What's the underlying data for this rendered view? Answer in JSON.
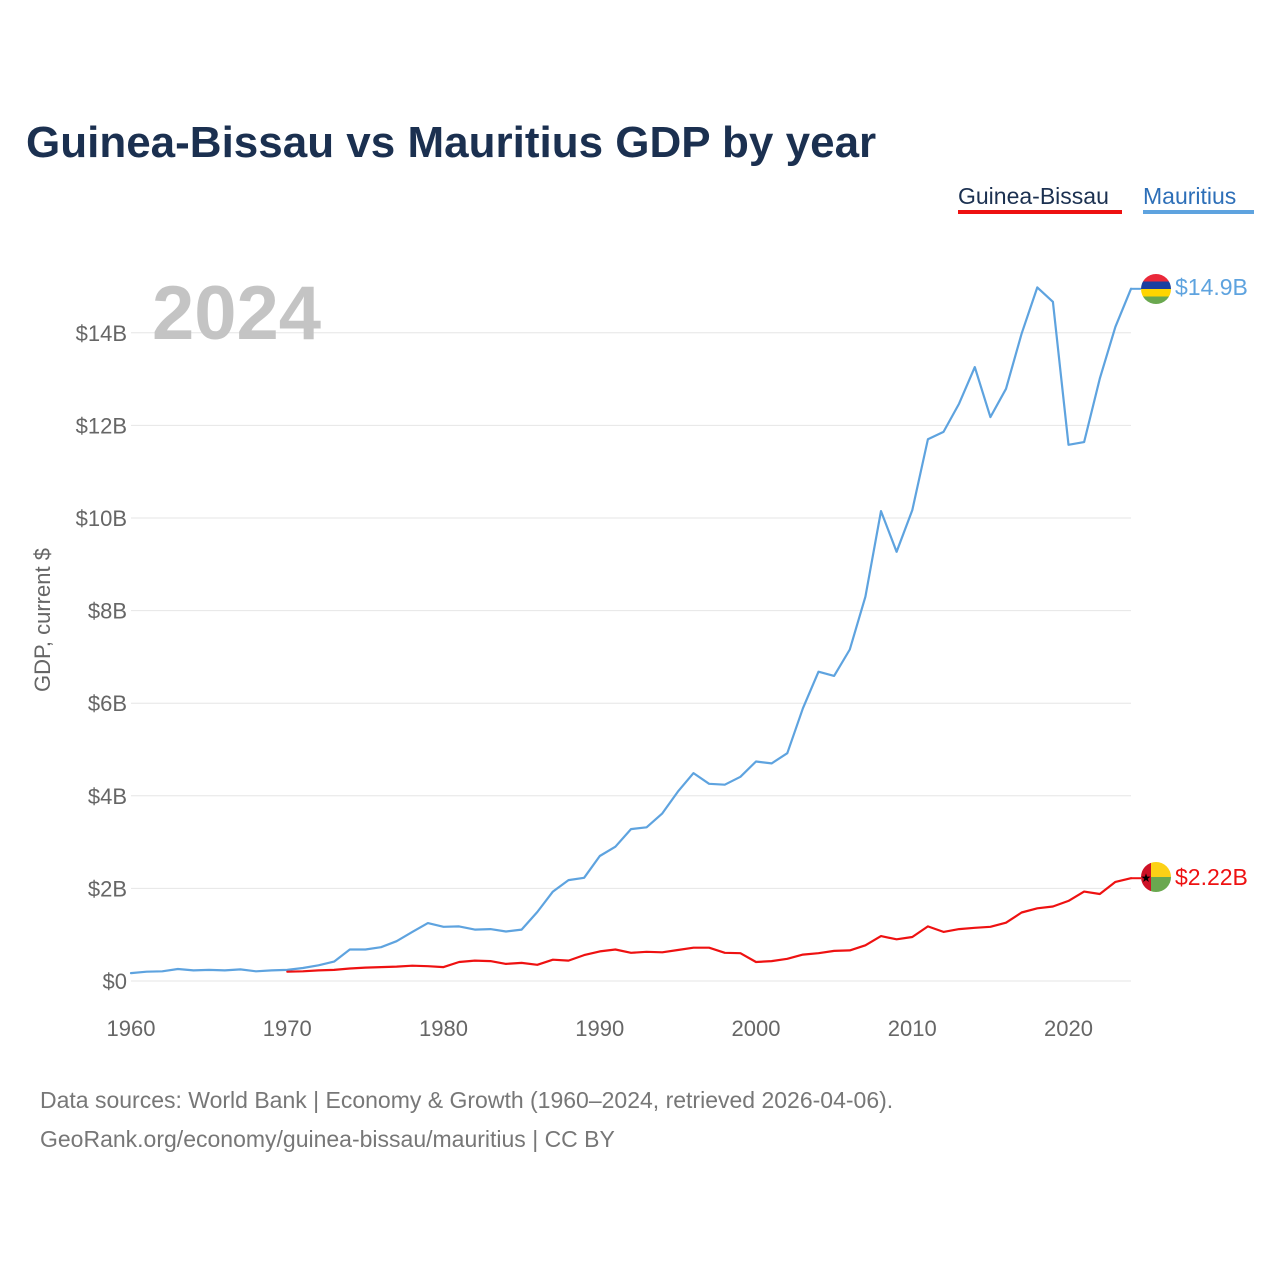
{
  "chart_data": {
    "type": "line",
    "title": "Guinea-Bissau vs Mauritius GDP by year",
    "current_year_label": "2024",
    "xlabel": "",
    "ylabel": "GDP, current $",
    "xlim": [
      1960,
      2024
    ],
    "ylim": [
      0,
      15.5
    ],
    "x_ticks": [
      1960,
      1970,
      1980,
      1990,
      2000,
      2010,
      2020
    ],
    "x_tick_labels": [
      "1960",
      "1970",
      "1980",
      "1990",
      "2000",
      "2010",
      "2020"
    ],
    "y_ticks": [
      0,
      2,
      4,
      6,
      8,
      10,
      12,
      14
    ],
    "y_tick_labels": [
      "$0",
      "$2B",
      "$4B",
      "$6B",
      "$8B",
      "$10B",
      "$12B",
      "$14B"
    ],
    "grid": true,
    "legend_position": "top-right",
    "series": [
      {
        "name": "Guinea-Bissau",
        "color": "#ee1111",
        "flag_colors": [
          "#ce1126",
          "#fcd116",
          "#009e49"
        ],
        "end_label": "$2.22B",
        "x": [
          1970,
          1971,
          1972,
          1973,
          1974,
          1975,
          1976,
          1977,
          1978,
          1979,
          1980,
          1981,
          1982,
          1983,
          1984,
          1985,
          1986,
          1987,
          1988,
          1989,
          1990,
          1991,
          1992,
          1993,
          1994,
          1995,
          1996,
          1997,
          1998,
          1999,
          2000,
          2001,
          2002,
          2003,
          2004,
          2005,
          2006,
          2007,
          2008,
          2009,
          2010,
          2011,
          2012,
          2013,
          2014,
          2015,
          2016,
          2017,
          2018,
          2019,
          2020,
          2021,
          2022,
          2023,
          2024
        ],
        "values": [
          0.2,
          0.21,
          0.23,
          0.24,
          0.27,
          0.29,
          0.3,
          0.31,
          0.33,
          0.32,
          0.3,
          0.41,
          0.44,
          0.43,
          0.37,
          0.39,
          0.35,
          0.46,
          0.44,
          0.56,
          0.64,
          0.68,
          0.61,
          0.63,
          0.62,
          0.67,
          0.72,
          0.72,
          0.61,
          0.6,
          0.41,
          0.43,
          0.48,
          0.57,
          0.6,
          0.65,
          0.66,
          0.77,
          0.97,
          0.9,
          0.95,
          1.18,
          1.06,
          1.12,
          1.15,
          1.17,
          1.26,
          1.48,
          1.57,
          1.61,
          1.73,
          1.93,
          1.88,
          2.14,
          2.22
        ]
      },
      {
        "name": "Mauritius",
        "color": "#5ea3df",
        "flag_colors": [
          "#ea2839",
          "#1a206d",
          "#ffd500",
          "#00a551"
        ],
        "end_label": "$14.9B",
        "x": [
          1960,
          1961,
          1962,
          1963,
          1964,
          1965,
          1966,
          1967,
          1968,
          1969,
          1970,
          1971,
          1972,
          1973,
          1974,
          1975,
          1976,
          1977,
          1978,
          1979,
          1980,
          1981,
          1982,
          1983,
          1984,
          1985,
          1986,
          1987,
          1988,
          1989,
          1990,
          1991,
          1992,
          1993,
          1994,
          1995,
          1996,
          1997,
          1998,
          1999,
          2000,
          2001,
          2002,
          2003,
          2004,
          2005,
          2006,
          2007,
          2008,
          2009,
          2010,
          2011,
          2012,
          2013,
          2014,
          2015,
          2016,
          2017,
          2018,
          2019,
          2020,
          2021,
          2022,
          2023,
          2024
        ],
        "values": [
          0.17,
          0.2,
          0.21,
          0.26,
          0.23,
          0.24,
          0.23,
          0.25,
          0.21,
          0.23,
          0.24,
          0.28,
          0.34,
          0.42,
          0.68,
          0.68,
          0.73,
          0.86,
          1.06,
          1.25,
          1.17,
          1.18,
          1.11,
          1.12,
          1.07,
          1.11,
          1.49,
          1.93,
          2.18,
          2.23,
          2.7,
          2.9,
          3.28,
          3.32,
          3.62,
          4.09,
          4.49,
          4.26,
          4.24,
          4.41,
          4.74,
          4.7,
          4.92,
          5.89,
          6.68,
          6.59,
          7.16,
          8.3,
          10.15,
          9.27,
          10.17,
          11.7,
          11.86,
          12.47,
          13.26,
          12.18,
          12.79,
          13.98,
          14.98,
          14.67,
          11.58,
          11.64,
          13.01,
          14.13,
          14.95
        ]
      }
    ]
  },
  "footer": {
    "line1": "Data sources: World Bank | Economy & Growth (1960–2024, retrieved 2026-04-06).",
    "line2": "GeoRank.org/economy/guinea-bissau/mauritius | CC BY"
  }
}
